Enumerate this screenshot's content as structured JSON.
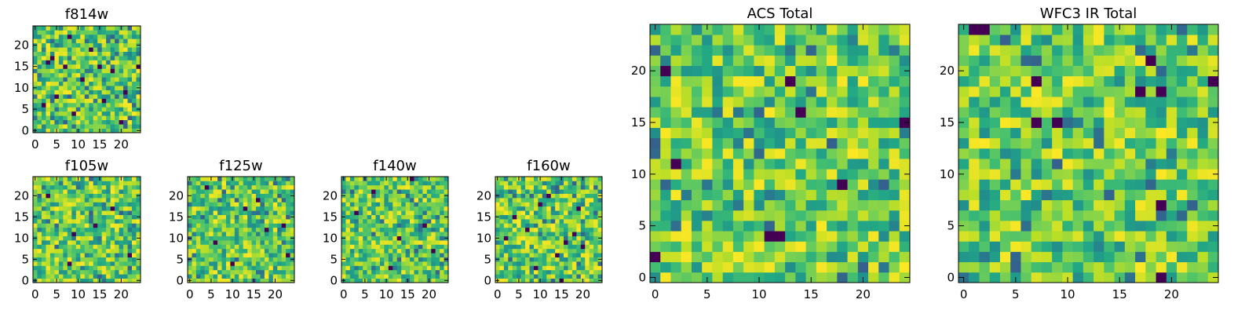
{
  "chart_data": [
    {
      "type": "heatmap",
      "title": "f814w",
      "grid_size": 25,
      "colormap": "viridis",
      "x_ticks": [
        "0",
        "5",
        "10",
        "15",
        "20"
      ],
      "y_ticks": [
        "0",
        "5",
        "10",
        "15",
        "20"
      ],
      "xlim": [
        0,
        25
      ],
      "ylim": [
        0,
        25
      ],
      "seed": 814,
      "min_cells": [
        [
          3,
          16
        ],
        [
          7,
          15
        ],
        [
          9,
          4
        ],
        [
          11,
          12
        ],
        [
          16,
          7
        ],
        [
          5,
          8
        ],
        [
          18,
          14
        ],
        [
          13,
          19
        ],
        [
          21,
          9
        ],
        [
          20,
          2
        ],
        [
          4,
          17
        ],
        [
          15,
          15
        ],
        [
          2,
          6
        ],
        [
          24,
          15
        ],
        [
          8,
          22
        ]
      ]
    },
    {
      "type": "heatmap",
      "title": "f105w",
      "grid_size": 25,
      "colormap": "viridis",
      "x_ticks": [
        "0",
        "5",
        "10",
        "15",
        "20"
      ],
      "y_ticks": [
        "0",
        "5",
        "10",
        "15",
        "20"
      ],
      "xlim": [
        0,
        25
      ],
      "ylim": [
        0,
        25
      ],
      "seed": 105,
      "min_cells": [
        [
          9,
          11
        ],
        [
          18,
          17
        ],
        [
          8,
          4
        ],
        [
          22,
          6
        ],
        [
          3,
          20
        ],
        [
          14,
          13
        ]
      ]
    },
    {
      "type": "heatmap",
      "title": "f125w",
      "grid_size": 25,
      "colormap": "viridis",
      "x_ticks": [
        "0",
        "5",
        "10",
        "15",
        "20"
      ],
      "y_ticks": [
        "0",
        "5",
        "10",
        "15",
        "20"
      ],
      "xlim": [
        0,
        25
      ],
      "ylim": [
        0,
        25
      ],
      "seed": 125,
      "min_cells": [
        [
          10,
          4
        ],
        [
          18,
          12
        ],
        [
          22,
          13
        ],
        [
          13,
          17
        ],
        [
          23,
          6
        ],
        [
          4,
          22
        ],
        [
          6,
          9
        ],
        [
          16,
          19
        ]
      ]
    },
    {
      "type": "heatmap",
      "title": "f140w",
      "grid_size": 25,
      "colormap": "viridis",
      "x_ticks": [
        "0",
        "5",
        "10",
        "15",
        "20"
      ],
      "y_ticks": [
        "0",
        "5",
        "10",
        "15",
        "20"
      ],
      "xlim": [
        0,
        25
      ],
      "ylim": [
        0,
        25
      ],
      "seed": 140,
      "min_cells": [
        [
          11,
          3
        ],
        [
          16,
          24
        ],
        [
          3,
          16
        ],
        [
          21,
          7
        ],
        [
          19,
          13
        ],
        [
          7,
          21
        ],
        [
          13,
          10
        ]
      ]
    },
    {
      "type": "heatmap",
      "title": "f160w",
      "grid_size": 25,
      "colormap": "viridis",
      "x_ticks": [
        "0",
        "5",
        "10",
        "15",
        "20"
      ],
      "y_ticks": [
        "0",
        "5",
        "10",
        "15",
        "20"
      ],
      "xlim": [
        0,
        25
      ],
      "ylim": [
        0,
        25
      ],
      "seed": 160,
      "min_cells": [
        [
          15,
          0
        ],
        [
          19,
          17
        ],
        [
          12,
          20
        ],
        [
          18,
          11
        ],
        [
          14,
          6
        ],
        [
          20,
          8
        ],
        [
          4,
          15
        ],
        [
          7,
          12
        ],
        [
          9,
          3
        ],
        [
          16,
          9
        ],
        [
          10,
          18
        ],
        [
          2,
          10
        ]
      ]
    },
    {
      "type": "heatmap",
      "title": "ACS Total",
      "grid_size": 25,
      "colormap": "viridis",
      "x_ticks": [
        "0",
        "5",
        "10",
        "15",
        "20"
      ],
      "y_ticks": [
        "0",
        "5",
        "10",
        "15",
        "20"
      ],
      "xlim": [
        0,
        25
      ],
      "ylim": [
        0,
        25
      ],
      "seed": 7,
      "min_cells": [
        [
          1,
          20
        ],
        [
          13,
          19
        ],
        [
          14,
          16
        ],
        [
          24,
          15
        ],
        [
          2,
          11
        ],
        [
          18,
          9
        ],
        [
          11,
          4
        ],
        [
          12,
          4
        ],
        [
          0,
          2
        ]
      ]
    },
    {
      "type": "heatmap",
      "title": "WFC3 IR Total",
      "grid_size": 25,
      "colormap": "viridis",
      "x_ticks": [
        "0",
        "5",
        "10",
        "15",
        "20"
      ],
      "y_ticks": [
        "0",
        "5",
        "10",
        "15",
        "20"
      ],
      "xlim": [
        0,
        25
      ],
      "ylim": [
        0,
        25
      ],
      "seed": 3,
      "min_cells": [
        [
          1,
          24
        ],
        [
          2,
          24
        ],
        [
          18,
          21
        ],
        [
          24,
          19
        ],
        [
          7,
          19
        ],
        [
          7,
          15
        ],
        [
          9,
          15
        ],
        [
          17,
          18
        ],
        [
          19,
          18
        ],
        [
          19,
          7
        ],
        [
          19,
          0
        ]
      ]
    }
  ]
}
